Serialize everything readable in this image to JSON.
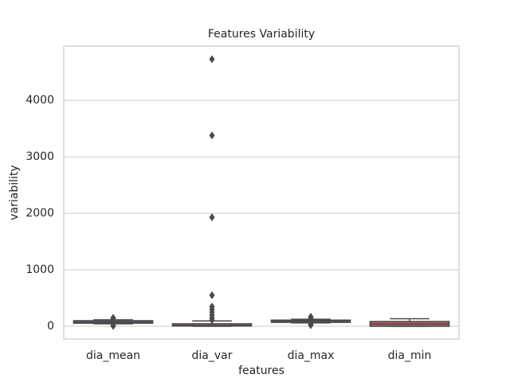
{
  "chart_data": {
    "type": "box",
    "title": "Features Variability",
    "x_label": "features",
    "y_label": "variability",
    "categories": [
      "dia_mean",
      "dia_var",
      "dia_max",
      "dia_min"
    ],
    "colors": [
      "#5975a4",
      "#cc8963",
      "#5f9e6e",
      "#b55d60"
    ],
    "boxes": [
      {
        "min": 45,
        "q1": 55,
        "median": 75,
        "q3": 100,
        "max": 115,
        "outliers": [
          5,
          15,
          140,
          150
        ]
      },
      {
        "min": 0,
        "q1": 5,
        "median": 20,
        "q3": 45,
        "max": 95,
        "outliers": [
          110,
          150,
          200,
          250,
          300,
          350,
          550,
          1930,
          3380,
          4730
        ]
      },
      {
        "min": 60,
        "q1": 70,
        "median": 90,
        "q3": 110,
        "max": 125,
        "outliers": [
          20,
          40,
          150,
          170
        ]
      },
      {
        "min": 0,
        "q1": 0,
        "median": 40,
        "q3": 85,
        "max": 135,
        "outliers": []
      }
    ],
    "ylim": [
      -225,
      4960
    ],
    "yticks": [
      0,
      1000,
      2000,
      3000,
      4000
    ],
    "grid": true
  }
}
